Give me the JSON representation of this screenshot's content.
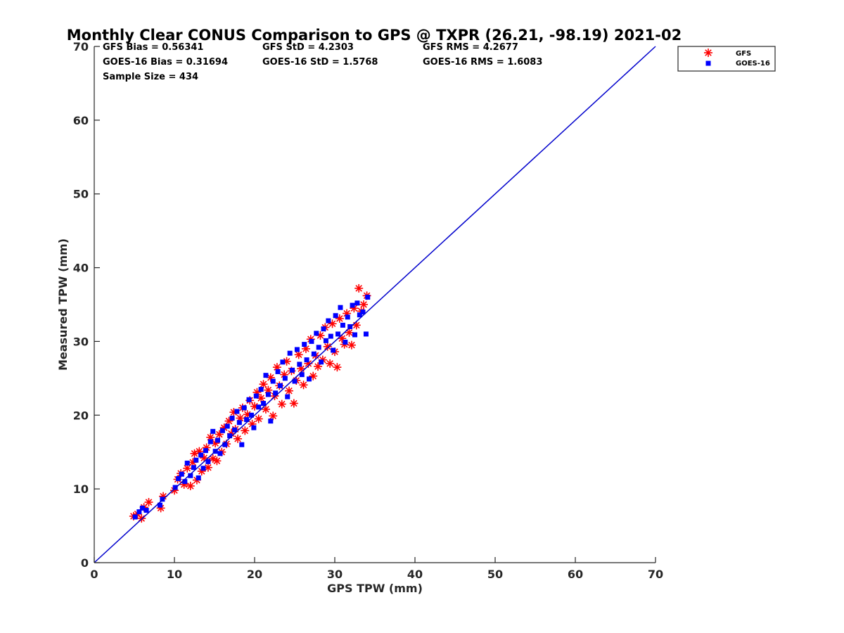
{
  "chart_data": {
    "type": "scatter",
    "title": "Monthly Clear CONUS Comparison to GPS @ TXPR (26.21, -98.19) 2021-02",
    "xlabel": "GPS TPW (mm)",
    "ylabel": "Measured TPW (mm)",
    "xlim": [
      0,
      70
    ],
    "ylim": [
      0,
      70
    ],
    "xticks": [
      "0",
      "10",
      "20",
      "30",
      "40",
      "50",
      "60",
      "70"
    ],
    "yticks": [
      "0",
      "10",
      "20",
      "30",
      "40",
      "50",
      "60",
      "70"
    ],
    "grid": false,
    "legend_position": "outside top-right",
    "stats": {
      "gfs_bias": "GFS Bias = 0.56341",
      "goes_bias": "GOES-16 Bias = 0.31694",
      "gfs_std": "GFS StD = 4.2303",
      "goes_std": "GOES-16 StD = 1.5768",
      "gfs_rms": "GFS RMS = 4.2677",
      "goes_rms": "GOES-16 RMS = 1.6083",
      "sample_size": "Sample Size = 434"
    },
    "reference_line": {
      "from": [
        0,
        0
      ],
      "to": [
        70,
        70
      ],
      "color": "#0000cc"
    },
    "series": [
      {
        "name": "GFS",
        "marker": "asterisk",
        "color": "#ff0000",
        "points": [
          [
            4.9,
            6.3
          ],
          [
            5.4,
            6.6
          ],
          [
            5.9,
            6.0
          ],
          [
            6.2,
            7.5
          ],
          [
            6.8,
            8.2
          ],
          [
            8.3,
            7.4
          ],
          [
            8.6,
            9.0
          ],
          [
            10.0,
            9.8
          ],
          [
            10.4,
            11.3
          ],
          [
            10.8,
            12.1
          ],
          [
            11.2,
            10.6
          ],
          [
            11.6,
            12.8
          ],
          [
            12.0,
            10.4
          ],
          [
            12.3,
            13.6
          ],
          [
            12.5,
            14.8
          ],
          [
            12.8,
            11.2
          ],
          [
            13.1,
            15.1
          ],
          [
            13.4,
            12.4
          ],
          [
            13.7,
            14.2
          ],
          [
            14.0,
            15.6
          ],
          [
            14.2,
            12.9
          ],
          [
            14.5,
            17.0
          ],
          [
            14.8,
            14.1
          ],
          [
            15.1,
            16.2
          ],
          [
            15.3,
            13.8
          ],
          [
            15.6,
            17.4
          ],
          [
            15.9,
            15.0
          ],
          [
            16.2,
            18.3
          ],
          [
            16.5,
            16.1
          ],
          [
            16.8,
            19.2
          ],
          [
            17.1,
            17.5
          ],
          [
            17.4,
            20.4
          ],
          [
            17.6,
            18.1
          ],
          [
            17.9,
            16.8
          ],
          [
            18.2,
            19.6
          ],
          [
            18.5,
            21.0
          ],
          [
            18.8,
            17.9
          ],
          [
            19.1,
            20.1
          ],
          [
            19.4,
            22.0
          ],
          [
            19.7,
            18.8
          ],
          [
            20.0,
            21.2
          ],
          [
            20.3,
            23.1
          ],
          [
            20.5,
            19.5
          ],
          [
            20.8,
            22.3
          ],
          [
            21.1,
            24.2
          ],
          [
            21.4,
            20.8
          ],
          [
            21.7,
            23.4
          ],
          [
            22.0,
            25.1
          ],
          [
            22.3,
            19.9
          ],
          [
            22.5,
            22.6
          ],
          [
            22.8,
            26.5
          ],
          [
            23.1,
            24.0
          ],
          [
            23.4,
            21.5
          ],
          [
            23.7,
            25.5
          ],
          [
            24.0,
            27.3
          ],
          [
            24.3,
            23.3
          ],
          [
            24.6,
            26.0
          ],
          [
            24.9,
            21.6
          ],
          [
            25.2,
            24.7
          ],
          [
            25.5,
            28.2
          ],
          [
            25.8,
            26.3
          ],
          [
            26.1,
            24.1
          ],
          [
            26.4,
            29.0
          ],
          [
            26.7,
            27.0
          ],
          [
            27.0,
            30.3
          ],
          [
            27.3,
            25.3
          ],
          [
            27.6,
            28.1
          ],
          [
            27.9,
            26.6
          ],
          [
            28.2,
            30.8
          ],
          [
            28.5,
            27.5
          ],
          [
            28.8,
            31.9
          ],
          [
            29.1,
            29.3
          ],
          [
            29.4,
            27.0
          ],
          [
            29.7,
            32.4
          ],
          [
            30.0,
            28.6
          ],
          [
            30.3,
            26.5
          ],
          [
            30.6,
            33.1
          ],
          [
            30.9,
            30.4
          ],
          [
            31.2,
            29.6
          ],
          [
            31.5,
            33.8
          ],
          [
            31.8,
            31.2
          ],
          [
            32.1,
            29.5
          ],
          [
            32.4,
            34.5
          ],
          [
            32.7,
            32.2
          ],
          [
            33.0,
            37.2
          ],
          [
            33.3,
            34.1
          ],
          [
            33.6,
            35.0
          ],
          [
            34.0,
            36.2
          ]
        ]
      },
      {
        "name": "GOES-16",
        "marker": "square",
        "color": "#0000ff",
        "points": [
          [
            5.1,
            6.2
          ],
          [
            5.6,
            6.9
          ],
          [
            6.0,
            7.4
          ],
          [
            6.5,
            7.1
          ],
          [
            8.2,
            7.8
          ],
          [
            8.5,
            8.6
          ],
          [
            10.1,
            10.2
          ],
          [
            10.5,
            11.4
          ],
          [
            10.9,
            12.0
          ],
          [
            11.3,
            11.0
          ],
          [
            11.6,
            13.5
          ],
          [
            12.0,
            11.8
          ],
          [
            12.4,
            12.9
          ],
          [
            12.7,
            13.9
          ],
          [
            13.0,
            11.5
          ],
          [
            13.3,
            14.6
          ],
          [
            13.6,
            12.8
          ],
          [
            13.9,
            15.2
          ],
          [
            14.2,
            13.7
          ],
          [
            14.5,
            16.4
          ],
          [
            14.8,
            17.8
          ],
          [
            15.1,
            15.1
          ],
          [
            15.4,
            16.6
          ],
          [
            15.7,
            14.8
          ],
          [
            16.0,
            17.9
          ],
          [
            16.3,
            16.0
          ],
          [
            16.6,
            18.5
          ],
          [
            16.9,
            17.2
          ],
          [
            17.2,
            19.6
          ],
          [
            17.5,
            18.0
          ],
          [
            17.8,
            20.5
          ],
          [
            18.1,
            19.0
          ],
          [
            18.4,
            16.0
          ],
          [
            18.7,
            21.0
          ],
          [
            19.0,
            19.4
          ],
          [
            19.3,
            22.1
          ],
          [
            19.6,
            20.0
          ],
          [
            19.9,
            18.3
          ],
          [
            20.2,
            22.6
          ],
          [
            20.5,
            21.1
          ],
          [
            20.8,
            23.5
          ],
          [
            21.1,
            21.6
          ],
          [
            21.4,
            25.4
          ],
          [
            21.7,
            22.8
          ],
          [
            22.0,
            19.2
          ],
          [
            22.3,
            24.6
          ],
          [
            22.6,
            23.0
          ],
          [
            22.9,
            25.9
          ],
          [
            23.2,
            24.0
          ],
          [
            23.5,
            27.2
          ],
          [
            23.8,
            25.0
          ],
          [
            24.1,
            22.5
          ],
          [
            24.4,
            28.4
          ],
          [
            24.7,
            26.1
          ],
          [
            25.0,
            24.6
          ],
          [
            25.3,
            28.9
          ],
          [
            25.6,
            26.9
          ],
          [
            25.9,
            25.5
          ],
          [
            26.2,
            29.6
          ],
          [
            26.5,
            27.5
          ],
          [
            26.8,
            24.9
          ],
          [
            27.1,
            30.0
          ],
          [
            27.4,
            28.3
          ],
          [
            27.7,
            31.1
          ],
          [
            28.0,
            29.2
          ],
          [
            28.3,
            27.2
          ],
          [
            28.6,
            31.7
          ],
          [
            28.9,
            30.1
          ],
          [
            29.2,
            32.8
          ],
          [
            29.5,
            30.7
          ],
          [
            29.8,
            28.8
          ],
          [
            30.1,
            33.5
          ],
          [
            30.4,
            31.0
          ],
          [
            30.7,
            34.6
          ],
          [
            31.0,
            32.2
          ],
          [
            31.3,
            29.9
          ],
          [
            31.6,
            33.3
          ],
          [
            31.9,
            32.0
          ],
          [
            32.2,
            34.9
          ],
          [
            32.5,
            30.9
          ],
          [
            32.8,
            35.2
          ],
          [
            33.1,
            33.6
          ],
          [
            33.5,
            34.0
          ],
          [
            33.9,
            31.0
          ],
          [
            34.1,
            36.0
          ]
        ]
      }
    ]
  }
}
